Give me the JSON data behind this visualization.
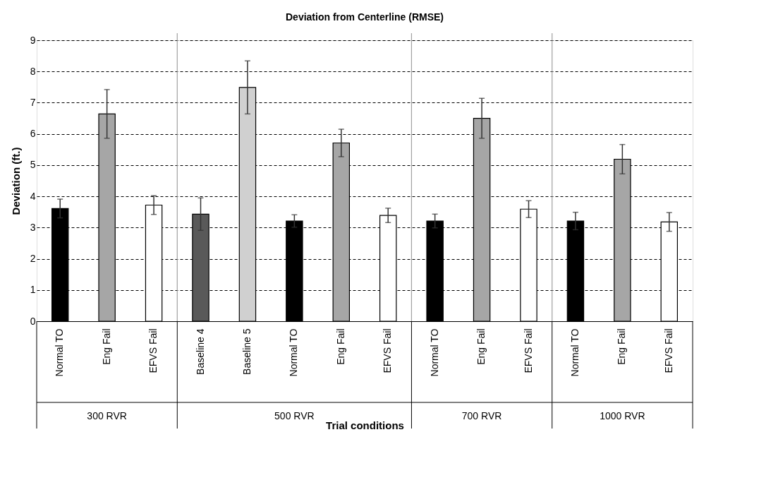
{
  "chart_data": {
    "type": "bar",
    "title": "Deviation from Centerline (RMSE)",
    "xlabel": "Trial conditions",
    "ylabel": "Deviation (ft.)",
    "categories": [
      "Normal TO",
      "Eng Fail",
      "EFVS Fail",
      "Baseline 4",
      "Baseline 5",
      "Normal TO",
      "Eng Fail",
      "EFVS Fail",
      "Normal TO",
      "Eng Fail",
      "EFVS Fail",
      "Normal TO",
      "Eng Fail",
      "EFVS Fail"
    ],
    "values": [
      3.61,
      6.64,
      3.72,
      3.43,
      7.49,
      3.21,
      5.71,
      3.39,
      3.21,
      6.5,
      3.59,
      3.21,
      5.19,
      3.18
    ],
    "errors": [
      0.3,
      0.78,
      0.3,
      0.52,
      0.85,
      0.2,
      0.44,
      0.23,
      0.22,
      0.64,
      0.27,
      0.28,
      0.47,
      0.3
    ],
    "colors": [
      "#000000",
      "#a6a6a6",
      "#ffffff",
      "#595959",
      "#d0d0d0",
      "#000000",
      "#a6a6a6",
      "#ffffff",
      "#000000",
      "#a6a6a6",
      "#ffffff",
      "#000000",
      "#a6a6a6",
      "#ffffff"
    ],
    "annotations": [
      "300 RVR",
      "500 RVR",
      "700 RVR",
      "1000 RVR"
    ],
    "ylim": [
      0,
      9
    ],
    "yticks": [
      0,
      1,
      2,
      3,
      4,
      5,
      6,
      7,
      8,
      9
    ],
    "grid": "y"
  }
}
